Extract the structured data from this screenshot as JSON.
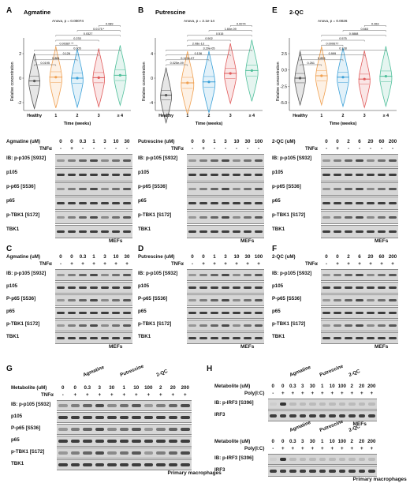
{
  "figure": {
    "panel_letters": [
      "A",
      "B",
      "E",
      "C",
      "D",
      "F",
      "G",
      "H"
    ],
    "violins": [
      {
        "letter": "A",
        "title": "Agmatine",
        "anova": "Anova, p = 0.00074",
        "xlabel": "Time (weeks)",
        "ylabel": "Relative concentration",
        "groups": [
          "Healthy",
          "1",
          "2",
          "3",
          "≥ 4"
        ],
        "colors": [
          "#555555",
          "#f0a050",
          "#3aa0d8",
          "#e05a5a",
          "#4fbf9a"
        ],
        "yticks": [
          "2",
          "0",
          "-2"
        ],
        "pvalues": [
          "0.0195",
          "0.884",
          "0.126",
          "0.005",
          "0.00387 **",
          "0.233",
          "0.0327",
          "0.0175 *",
          "0.089"
        ]
      },
      {
        "letter": "B",
        "title": "Putrescine",
        "anova": "Anova, p = 2.1e-14",
        "xlabel": "Time (weeks)",
        "ylabel": "Relative concentration",
        "groups": [
          "Healthy",
          "1",
          "2",
          "3",
          "≥ 4"
        ],
        "colors": [
          "#555555",
          "#f0a050",
          "#3aa0d8",
          "#e05a5a",
          "#4fbf9a"
        ],
        "yticks": [
          "4",
          "0",
          "-4"
        ],
        "pvalues": [
          "0.025e-09",
          "0.122e-07",
          "0.136",
          "3.29e-05",
          "2.08e-13",
          "0.502",
          "0.515",
          "1.60e-09",
          "0.0074"
        ]
      },
      {
        "letter": "E",
        "title": "2-QC",
        "anova": "Anova, p = 0.0026",
        "xlabel": "Time (weeks)",
        "ylabel": "Relative concentration",
        "groups": [
          "Healthy",
          "1",
          "2",
          "3",
          "≥ 4"
        ],
        "colors": [
          "#555555",
          "#f0a050",
          "#3aa0d8",
          "#e05a5a",
          "#4fbf9a"
        ],
        "yticks": [
          "2.5",
          "0.0",
          "-2.5",
          "-5.0"
        ],
        "pvalues": [
          "0.261",
          "0.833",
          "0.999",
          "0.128",
          "0.000677",
          "0.575",
          "0.0888",
          "0.663",
          "0.263"
        ]
      }
    ],
    "blots_row1": [
      {
        "treat": "Agmatine (uM)",
        "doses": [
          "0",
          "0",
          "0.3",
          "1",
          "3",
          "10",
          "30"
        ],
        "tnf": [
          "-",
          "+",
          "-",
          "-",
          "-",
          "-",
          "-"
        ],
        "rows": [
          "IB: p-p105 [S932]",
          "p105",
          "p-p65 [S536]",
          "p65",
          "p-TBK1 [S172]",
          "TBK1"
        ],
        "caption": "MEFs"
      },
      {
        "treat": "Putrescine (uM)",
        "doses": [
          "0",
          "0",
          "1",
          "3",
          "10",
          "30",
          "100"
        ],
        "tnf": [
          "-",
          "+",
          "-",
          "-",
          "-",
          "-",
          "-"
        ],
        "rows": [
          "IB: p-p105 [S932]",
          "p105",
          "p-p65 [S536]",
          "p65",
          "p-TBK1 [S172]",
          "TBK1"
        ],
        "caption": "MEFs"
      },
      {
        "treat": "2-QC (uM)",
        "doses": [
          "0",
          "0",
          "2",
          "6",
          "20",
          "60",
          "200"
        ],
        "tnf": [
          "-",
          "+",
          "-",
          "-",
          "-",
          "-",
          "-"
        ],
        "rows": [
          "IB: p-p105 [S932]",
          "p105",
          "p-p65 [S536]",
          "p65",
          "p-TBK1 [S172]",
          "TBK1"
        ],
        "caption": "MEFs"
      }
    ],
    "blots_row2": [
      {
        "treat": "Agmatine (uM)",
        "doses": [
          "0",
          "0",
          "0.3",
          "1",
          "3",
          "10",
          "30"
        ],
        "tnf": [
          "-",
          "+",
          "+",
          "+",
          "+",
          "+",
          "+"
        ],
        "rows": [
          "IB: p-p105 [S932]",
          "p105",
          "P-p65 [S536]",
          "p65",
          "p-TBK1 [S172]",
          "TBK1"
        ],
        "caption": "MEFs"
      },
      {
        "treat": "Putrescine (uM)",
        "doses": [
          "0",
          "0",
          "1",
          "3",
          "10",
          "30",
          "100"
        ],
        "tnf": [
          "-",
          "+",
          "+",
          "+",
          "+",
          "+",
          "+"
        ],
        "rows": [
          "IB: p-p105 [S932]",
          "p105",
          "P-p65 [S536]",
          "p65",
          "p-TBK1 [S172]",
          "TBK1"
        ],
        "caption": "MEFs"
      },
      {
        "treat": "2-QC (uM)",
        "doses": [
          "0",
          "0",
          "2",
          "6",
          "20",
          "60",
          "200"
        ],
        "tnf": [
          "-",
          "+",
          "+",
          "+",
          "+",
          "+",
          "+"
        ],
        "rows": [
          "IB: p-p105 [S932]",
          "p105",
          "P-p65 [S536]",
          "p65",
          "p-TBK1 [S172]",
          "TBK1"
        ],
        "caption": "MEFs"
      }
    ],
    "panel_g": {
      "treat": "Metabolite (uM)",
      "tnf_label": "TNFα",
      "groups": [
        "Agmatine",
        "Putrescine",
        "2-QC"
      ],
      "doses": [
        "0",
        "0",
        "0.3",
        "3",
        "30",
        "1",
        "10",
        "100",
        "2",
        "20",
        "200"
      ],
      "tnf": [
        "-",
        "+",
        "+",
        "+",
        "+",
        "+",
        "+",
        "+",
        "+",
        "+",
        "+"
      ],
      "rows": [
        "IB: p-p105 [S932]",
        "p105",
        "P-p65 [S536]",
        "p65",
        "p-TBK1 [S172]",
        "TBK1"
      ],
      "caption": "Primary macrophages"
    },
    "panel_h": [
      {
        "treat": "Metabolite (uM)",
        "stim": "Poly(I:C)",
        "groups": [
          "Agmatine",
          "Putrescine",
          "2-QC"
        ],
        "doses": [
          "0",
          "0",
          "0.3",
          "3",
          "30",
          "1",
          "10",
          "100",
          "2",
          "20",
          "200"
        ],
        "stim_signs": [
          "-",
          "+",
          "+",
          "+",
          "+",
          "+",
          "+",
          "+",
          "+",
          "+",
          "+"
        ],
        "rows": [
          "IB: p-IRF3 [S396]",
          "IRF3"
        ],
        "caption": "MEFs"
      },
      {
        "treat": "Metabolite (uM)",
        "stim": "Poly(I:C)",
        "groups": [
          "Agmatine",
          "Putrescine",
          "2-QC"
        ],
        "doses": [
          "0",
          "0",
          "0.3",
          "3",
          "30",
          "1",
          "10",
          "100",
          "2",
          "20",
          "200"
        ],
        "stim_signs": [
          "-",
          "+",
          "+",
          "+",
          "+",
          "+",
          "+",
          "+",
          "+",
          "+",
          "+"
        ],
        "rows": [
          "IB: p-IRF3 [S396]",
          "IRF3"
        ],
        "caption": "Primary macrophages"
      }
    ],
    "tnf_label": "TNFα"
  }
}
